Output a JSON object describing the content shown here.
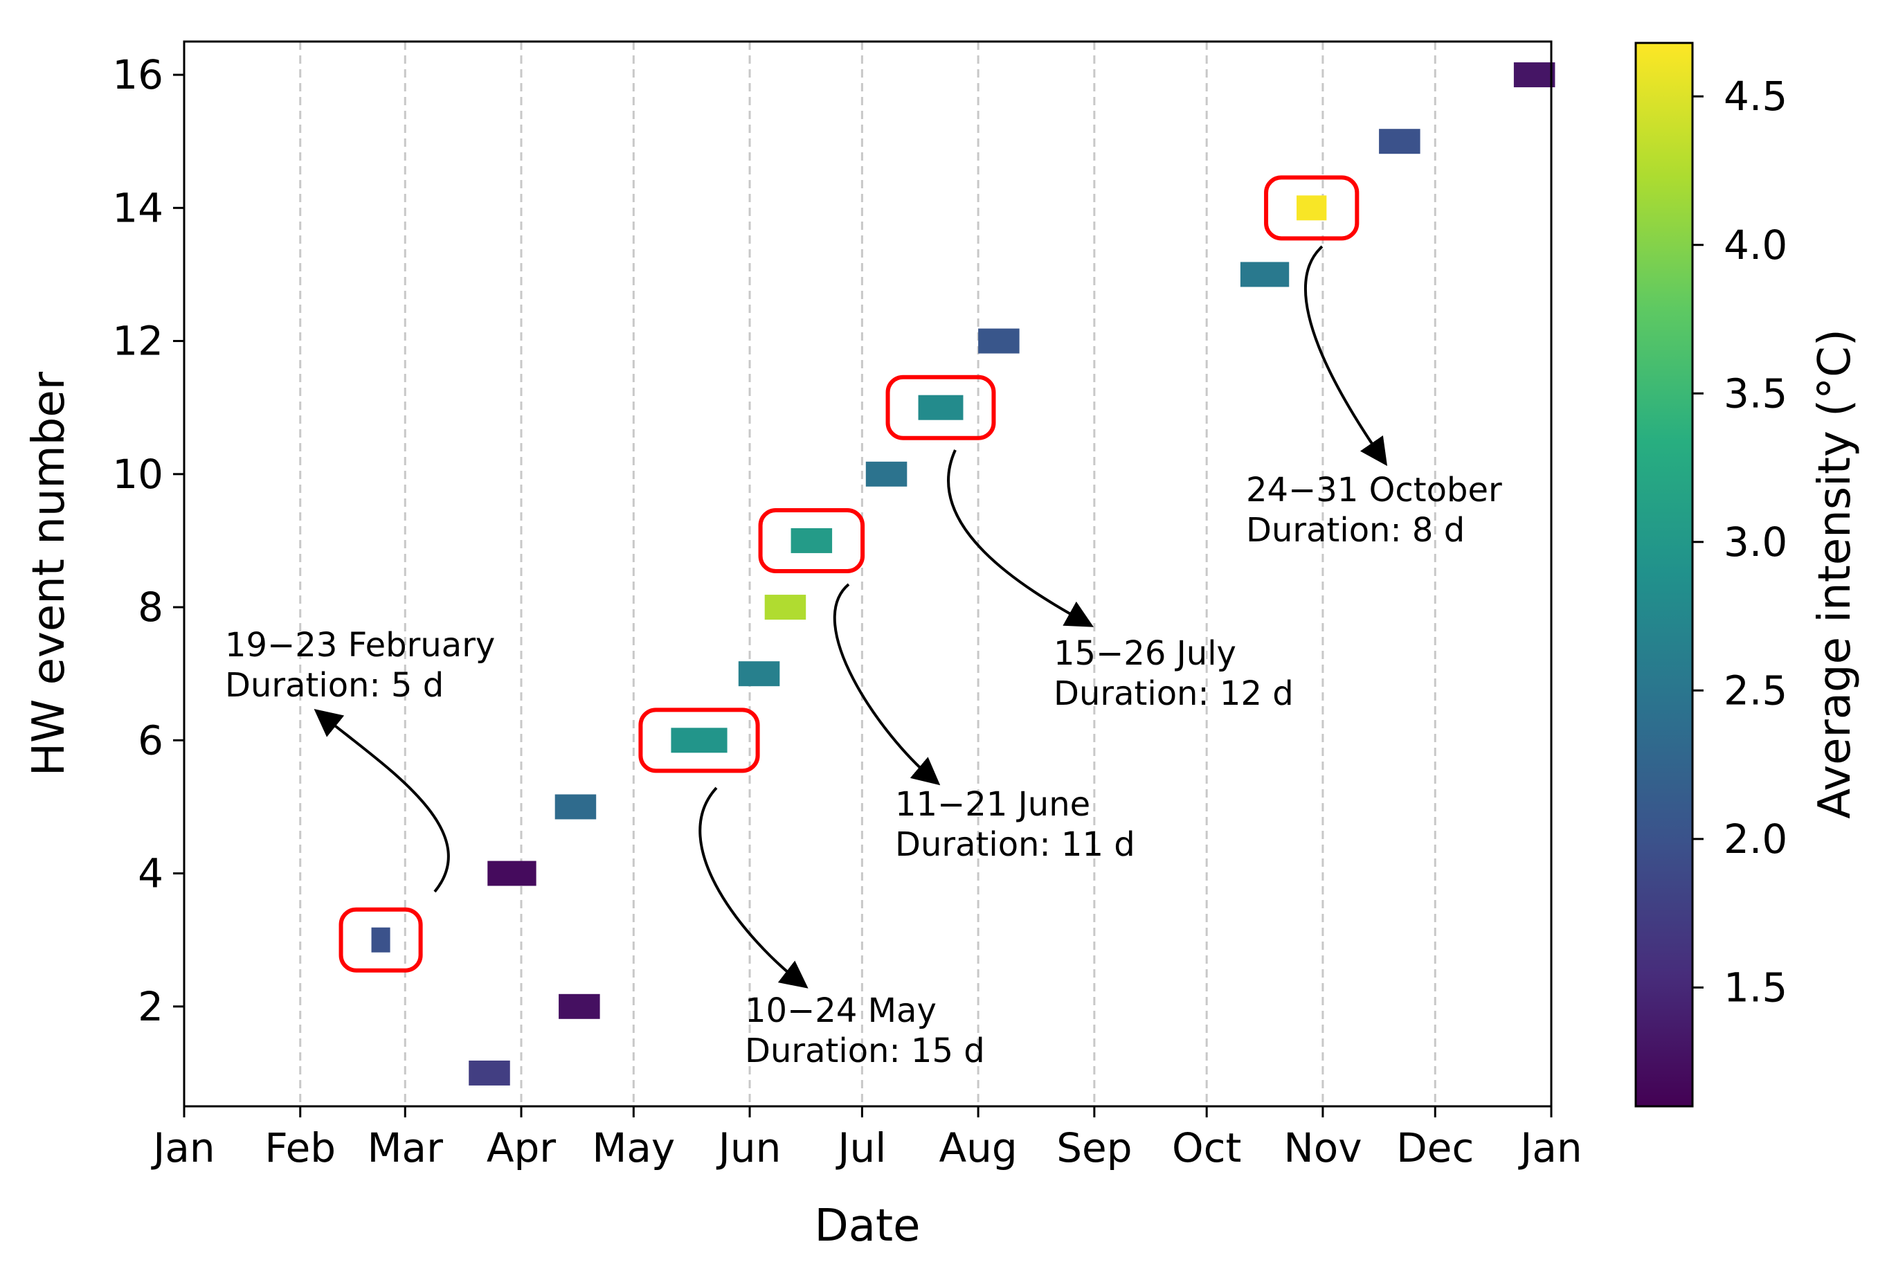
{
  "chart_data": {
    "type": "scatter",
    "xlabel": "Date",
    "ylabel": "HW event number",
    "x_ticks": [
      "Jan",
      "Feb",
      "Mar",
      "Apr",
      "May",
      "Jun",
      "Jul",
      "Aug",
      "Sep",
      "Oct",
      "Nov",
      "Dec",
      "Jan"
    ],
    "ylim": [
      0.5,
      16.5
    ],
    "y_ticks": [
      2,
      4,
      6,
      8,
      10,
      12,
      14,
      16
    ],
    "grid": "vertical dashed at month starts",
    "colorbar": {
      "label": "Average intensity (°C)",
      "range": [
        1.1,
        4.68
      ],
      "ticks": [
        "1.5",
        "2.0",
        "2.5",
        "3.0",
        "3.5",
        "4.0",
        "4.5"
      ],
      "colormap": "viridis"
    },
    "events": [
      {
        "number": 1,
        "start_day": 76,
        "end_day": 86,
        "intensity": 1.75
      },
      {
        "number": 2,
        "start_day": 100,
        "end_day": 110,
        "intensity": 1.25
      },
      {
        "number": 3,
        "start_day": 50,
        "end_day": 54,
        "intensity": 2.0
      },
      {
        "number": 4,
        "start_day": 81,
        "end_day": 93,
        "intensity": 1.2
      },
      {
        "number": 5,
        "start_day": 99,
        "end_day": 109,
        "intensity": 2.35
      },
      {
        "number": 6,
        "start_day": 130,
        "end_day": 144,
        "intensity": 2.95
      },
      {
        "number": 7,
        "start_day": 148,
        "end_day": 158,
        "intensity": 2.65
      },
      {
        "number": 8,
        "start_day": 155,
        "end_day": 165,
        "intensity": 4.25
      },
      {
        "number": 9,
        "start_day": 162,
        "end_day": 172,
        "intensity": 3.05
      },
      {
        "number": 10,
        "start_day": 182,
        "end_day": 192,
        "intensity": 2.45
      },
      {
        "number": 11,
        "start_day": 196,
        "end_day": 207,
        "intensity": 2.8
      },
      {
        "number": 12,
        "start_day": 212,
        "end_day": 222,
        "intensity": 2.05
      },
      {
        "number": 13,
        "start_day": 282,
        "end_day": 294,
        "intensity": 2.55
      },
      {
        "number": 14,
        "start_day": 297,
        "end_day": 304,
        "intensity": 4.65
      },
      {
        "number": 15,
        "start_day": 319,
        "end_day": 329,
        "intensity": 2.0
      },
      {
        "number": 16,
        "start_day": 355,
        "end_day": 365,
        "intensity": 1.3
      }
    ],
    "annotations": [
      {
        "event": 3,
        "line1": "19−23 February",
        "line2": "Duration: 5 d"
      },
      {
        "event": 6,
        "line1": "10−24 May",
        "line2": "Duration: 15 d"
      },
      {
        "event": 9,
        "line1": "11−21 June",
        "line2": "Duration: 11 d"
      },
      {
        "event": 11,
        "line1": "15−26 July",
        "line2": "Duration: 12 d"
      },
      {
        "event": 14,
        "line1": "24−31 October",
        "line2": "Duration: 8 d"
      }
    ]
  }
}
